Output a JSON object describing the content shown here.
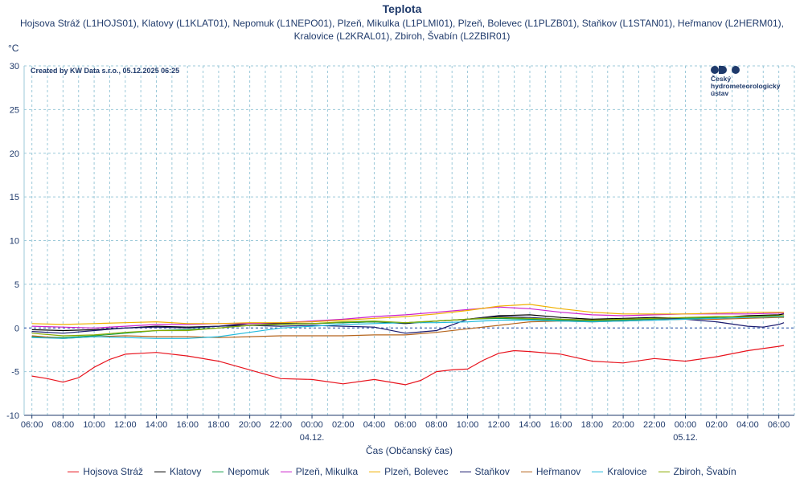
{
  "header": {
    "title": "Teplota",
    "subtitle": "Hojsova Stráž (L1HOJS01), Klatovy (L1KLAT01), Nepomuk (L1NEPO01), Plzeň, Mikulka (L1PLMI01), Plzeň, Bolevec (L1PLZB01), Staňkov (L1STAN01), Heřmanov (L2HERM01), Kralovice (L2KRAL01), Zbiroh, Švabín (L2ZBIR01)",
    "unit": "°C"
  },
  "credit": "Created by KW Data s.r.o., 05.12.2025 06:25",
  "logo": {
    "line1": "Český",
    "line2": "hydrometeorologický",
    "line3": "ústav"
  },
  "chart_data": {
    "type": "line",
    "xlabel": "Čas (Občanský čas)",
    "ylabel": "°C",
    "ylim": [
      -10,
      30
    ],
    "xlim": [
      "2025-12-03 05:30",
      "2025-12-05 07:00"
    ],
    "yticks": [
      30,
      25,
      20,
      15,
      10,
      5,
      0,
      -5,
      -10
    ],
    "xticks": [
      "06:00",
      "08:00",
      "10:00",
      "12:00",
      "14:00",
      "16:00",
      "18:00",
      "20:00",
      "22:00",
      "00:00",
      "02:00",
      "04:00",
      "06:00",
      "08:00",
      "10:00",
      "12:00",
      "14:00",
      "16:00",
      "18:00",
      "20:00",
      "22:00",
      "00:00",
      "02:00",
      "04:00",
      "06:00"
    ],
    "date_labels": [
      {
        "at": "2025-12-04 00:00",
        "text": "04.12."
      },
      {
        "at": "2025-12-05 00:00",
        "text": "05.12."
      }
    ],
    "grid": true,
    "zero_line": true,
    "legend_position": "bottom",
    "series": [
      {
        "name": "Hojsova Stráž",
        "color": "#e8141e",
        "x": [
          "2025-12-03 06:00",
          "2025-12-03 07:00",
          "2025-12-03 08:00",
          "2025-12-03 09:00",
          "2025-12-03 10:00",
          "2025-12-03 11:00",
          "2025-12-03 12:00",
          "2025-12-03 13:00",
          "2025-12-03 14:00",
          "2025-12-03 16:00",
          "2025-12-03 18:00",
          "2025-12-03 20:00",
          "2025-12-03 22:00",
          "2025-12-04 00:00",
          "2025-12-04 02:00",
          "2025-12-04 04:00",
          "2025-12-04 06:00",
          "2025-12-04 07:00",
          "2025-12-04 08:00",
          "2025-12-04 09:00",
          "2025-12-04 10:00",
          "2025-12-04 11:00",
          "2025-12-04 12:00",
          "2025-12-04 13:00",
          "2025-12-04 14:00",
          "2025-12-04 16:00",
          "2025-12-04 18:00",
          "2025-12-04 19:00",
          "2025-12-04 20:00",
          "2025-12-04 22:00",
          "2025-12-05 00:00",
          "2025-12-05 02:00",
          "2025-12-05 04:00",
          "2025-12-05 06:00",
          "2025-12-05 06:20"
        ],
        "y": [
          -5.5,
          -5.8,
          -6.2,
          -5.7,
          -4.5,
          -3.6,
          -3.0,
          -2.9,
          -2.8,
          -3.2,
          -3.8,
          -4.8,
          -5.8,
          -5.9,
          -6.4,
          -5.9,
          -6.5,
          -6.0,
          -5.0,
          -4.8,
          -4.7,
          -3.7,
          -2.9,
          -2.6,
          -2.7,
          -3.0,
          -3.8,
          -3.9,
          -4.0,
          -3.5,
          -3.8,
          -3.3,
          -2.6,
          -2.1,
          -2.0
        ]
      },
      {
        "name": "Klatovy",
        "color": "#000000",
        "x": [
          "2025-12-03 06:00",
          "2025-12-03 08:00",
          "2025-12-03 10:00",
          "2025-12-03 12:00",
          "2025-12-03 14:00",
          "2025-12-03 16:00",
          "2025-12-03 18:00",
          "2025-12-03 20:00",
          "2025-12-03 22:00",
          "2025-12-04 00:00",
          "2025-12-04 02:00",
          "2025-12-04 04:00",
          "2025-12-04 06:00",
          "2025-12-04 08:00",
          "2025-12-04 10:00",
          "2025-12-04 12:00",
          "2025-12-04 14:00",
          "2025-12-04 16:00",
          "2025-12-04 18:00",
          "2025-12-04 20:00",
          "2025-12-04 22:00",
          "2025-12-05 00:00",
          "2025-12-05 02:00",
          "2025-12-05 04:00",
          "2025-12-05 06:00",
          "2025-12-05 06:20"
        ],
        "y": [
          -0.2,
          -0.3,
          -0.2,
          0.0,
          0.2,
          0.1,
          0.2,
          0.5,
          0.5,
          0.5,
          0.6,
          0.7,
          0.5,
          0.8,
          1.0,
          1.4,
          1.5,
          1.2,
          1.0,
          1.1,
          1.2,
          1.1,
          1.2,
          1.4,
          1.5,
          1.6
        ]
      },
      {
        "name": "Nepomuk",
        "color": "#16a04a",
        "x": [
          "2025-12-03 06:00",
          "2025-12-03 08:00",
          "2025-12-03 10:00",
          "2025-12-03 12:00",
          "2025-12-03 14:00",
          "2025-12-03 16:00",
          "2025-12-03 18:00",
          "2025-12-03 20:00",
          "2025-12-03 22:00",
          "2025-12-04 00:00",
          "2025-12-04 02:00",
          "2025-12-04 04:00",
          "2025-12-04 06:00",
          "2025-12-04 08:00",
          "2025-12-04 10:00",
          "2025-12-04 12:00",
          "2025-12-04 14:00",
          "2025-12-04 16:00",
          "2025-12-04 18:00",
          "2025-12-04 20:00",
          "2025-12-04 22:00",
          "2025-12-05 00:00",
          "2025-12-05 02:00",
          "2025-12-05 04:00",
          "2025-12-05 06:00",
          "2025-12-05 06:20"
        ],
        "y": [
          -1.0,
          -1.1,
          -0.9,
          -0.6,
          -0.3,
          -0.2,
          0.0,
          0.3,
          0.4,
          0.5,
          0.6,
          0.7,
          0.6,
          0.8,
          1.0,
          1.1,
          1.0,
          0.9,
          0.8,
          0.9,
          1.0,
          1.1,
          1.2,
          1.3,
          1.4,
          1.3
        ]
      },
      {
        "name": "Plzeň, Mikulka",
        "color": "#cc22cc",
        "x": [
          "2025-12-03 06:00",
          "2025-12-03 08:00",
          "2025-12-03 10:00",
          "2025-12-03 12:00",
          "2025-12-03 14:00",
          "2025-12-03 16:00",
          "2025-12-03 18:00",
          "2025-12-03 20:00",
          "2025-12-03 22:00",
          "2025-12-04 00:00",
          "2025-12-04 02:00",
          "2025-12-04 04:00",
          "2025-12-04 06:00",
          "2025-12-04 08:00",
          "2025-12-04 10:00",
          "2025-12-04 12:00",
          "2025-12-04 14:00",
          "2025-12-04 16:00",
          "2025-12-04 18:00",
          "2025-12-04 20:00",
          "2025-12-04 22:00",
          "2025-12-05 00:00",
          "2025-12-05 02:00",
          "2025-12-05 04:00",
          "2025-12-05 06:00",
          "2025-12-05 06:20"
        ],
        "y": [
          0.2,
          0.1,
          0.0,
          0.2,
          0.4,
          0.4,
          0.5,
          0.5,
          0.6,
          0.8,
          1.0,
          1.3,
          1.5,
          1.8,
          2.1,
          2.4,
          2.2,
          1.8,
          1.5,
          1.4,
          1.5,
          1.6,
          1.6,
          1.6,
          1.7,
          1.7
        ]
      },
      {
        "name": "Plzeň, Bolevec",
        "color": "#f0b000",
        "x": [
          "2025-12-03 06:00",
          "2025-12-03 08:00",
          "2025-12-03 10:00",
          "2025-12-03 12:00",
          "2025-12-03 14:00",
          "2025-12-03 16:00",
          "2025-12-03 18:00",
          "2025-12-03 20:00",
          "2025-12-03 22:00",
          "2025-12-04 00:00",
          "2025-12-04 02:00",
          "2025-12-04 04:00",
          "2025-12-04 06:00",
          "2025-12-04 08:00",
          "2025-12-04 10:00",
          "2025-12-04 12:00",
          "2025-12-04 14:00",
          "2025-12-04 16:00",
          "2025-12-04 18:00",
          "2025-12-04 20:00",
          "2025-12-04 22:00",
          "2025-12-05 00:00",
          "2025-12-05 02:00",
          "2025-12-05 04:00",
          "2025-12-05 06:00",
          "2025-12-05 06:20"
        ],
        "y": [
          0.5,
          0.4,
          0.5,
          0.6,
          0.7,
          0.5,
          0.5,
          0.6,
          0.6,
          0.7,
          0.9,
          1.1,
          1.3,
          1.6,
          2.0,
          2.5,
          2.7,
          2.2,
          1.8,
          1.6,
          1.6,
          1.6,
          1.7,
          1.8,
          1.8,
          1.8
        ]
      },
      {
        "name": "Staňkov",
        "color": "#1a1a6e",
        "x": [
          "2025-12-03 06:00",
          "2025-12-03 08:00",
          "2025-12-03 10:00",
          "2025-12-03 12:00",
          "2025-12-03 14:00",
          "2025-12-03 16:00",
          "2025-12-03 18:00",
          "2025-12-03 20:00",
          "2025-12-03 22:00",
          "2025-12-04 00:00",
          "2025-12-04 02:00",
          "2025-12-04 04:00",
          "2025-12-04 06:00",
          "2025-12-04 08:00",
          "2025-12-04 10:00",
          "2025-12-04 12:00",
          "2025-12-04 14:00",
          "2025-12-04 16:00",
          "2025-12-04 18:00",
          "2025-12-04 20:00",
          "2025-12-04 22:00",
          "2025-12-05 00:00",
          "2025-12-05 02:00",
          "2025-12-05 04:00",
          "2025-12-05 05:00",
          "2025-12-05 06:00",
          "2025-12-05 06:20"
        ],
        "y": [
          -0.4,
          -0.6,
          -0.3,
          0.0,
          0.1,
          0.0,
          0.2,
          0.3,
          0.2,
          0.3,
          0.2,
          0.1,
          -0.6,
          -0.3,
          1.0,
          1.3,
          1.2,
          1.0,
          0.9,
          1.0,
          1.1,
          1.0,
          0.7,
          0.2,
          0.1,
          0.4,
          0.6
        ]
      },
      {
        "name": "Heřmanov",
        "color": "#b5651d",
        "x": [
          "2025-12-03 06:00",
          "2025-12-03 08:00",
          "2025-12-03 10:00",
          "2025-12-03 12:00",
          "2025-12-03 14:00",
          "2025-12-03 16:00",
          "2025-12-03 18:00",
          "2025-12-03 20:00",
          "2025-12-03 22:00",
          "2025-12-04 00:00",
          "2025-12-04 02:00",
          "2025-12-04 04:00",
          "2025-12-04 06:00",
          "2025-12-04 08:00",
          "2025-12-04 10:00",
          "2025-12-04 12:00",
          "2025-12-04 14:00",
          "2025-12-04 16:00",
          "2025-12-04 18:00",
          "2025-12-04 20:00",
          "2025-12-04 22:00",
          "2025-12-05 00:00",
          "2025-12-05 02:00",
          "2025-12-05 04:00",
          "2025-12-05 06:00",
          "2025-12-05 06:20"
        ],
        "y": [
          -0.9,
          -1.2,
          -1.0,
          -0.9,
          -1.0,
          -1.0,
          -1.1,
          -1.0,
          -0.9,
          -0.9,
          -0.9,
          -0.8,
          -0.8,
          -0.5,
          -0.1,
          0.3,
          0.7,
          0.8,
          0.7,
          0.8,
          0.9,
          1.0,
          1.0,
          1.1,
          1.2,
          1.2
        ]
      },
      {
        "name": "Kralovice",
        "color": "#22bbdd",
        "x": [
          "2025-12-03 06:00",
          "2025-12-03 08:00",
          "2025-12-03 10:00",
          "2025-12-03 12:00",
          "2025-12-03 14:00",
          "2025-12-03 16:00",
          "2025-12-03 18:00",
          "2025-12-03 20:00",
          "2025-12-03 22:00",
          "2025-12-04 00:00",
          "2025-12-04 02:00",
          "2025-12-04 04:00",
          "2025-12-04 06:00",
          "2025-12-04 08:00",
          "2025-12-04 10:00",
          "2025-12-04 12:00",
          "2025-12-04 14:00",
          "2025-12-04 16:00",
          "2025-12-04 18:00",
          "2025-12-04 20:00",
          "2025-12-04 22:00",
          "2025-12-05 00:00",
          "2025-12-05 02:00",
          "2025-12-05 04:00",
          "2025-12-05 06:00",
          "2025-12-05 06:20"
        ],
        "y": [
          -1.1,
          -1.2,
          -1.0,
          -1.1,
          -1.2,
          -1.2,
          -1.0,
          -0.5,
          0.0,
          0.2,
          0.4,
          0.5,
          0.6,
          0.6,
          0.7,
          0.9,
          0.9,
          0.8,
          0.7,
          0.8,
          0.9,
          1.0,
          1.1,
          1.2,
          1.3,
          1.3
        ]
      },
      {
        "name": "Zbiroh, Švabín",
        "color": "#88aa00",
        "x": [
          "2025-12-03 06:00",
          "2025-12-03 08:00",
          "2025-12-03 10:00",
          "2025-12-03 12:00",
          "2025-12-03 14:00",
          "2025-12-03 16:00",
          "2025-12-03 18:00",
          "2025-12-03 20:00",
          "2025-12-03 22:00",
          "2025-12-04 00:00",
          "2025-12-04 02:00",
          "2025-12-04 04:00",
          "2025-12-04 06:00",
          "2025-12-04 08:00",
          "2025-12-04 10:00",
          "2025-12-04 12:00",
          "2025-12-04 14:00",
          "2025-12-04 16:00",
          "2025-12-04 18:00",
          "2025-12-04 20:00",
          "2025-12-04 22:00",
          "2025-12-05 00:00",
          "2025-12-05 02:00",
          "2025-12-05 04:00",
          "2025-12-05 06:00",
          "2025-12-05 06:20"
        ],
        "y": [
          -0.6,
          -0.9,
          -0.8,
          -0.5,
          -0.3,
          -0.3,
          0.0,
          0.3,
          0.4,
          0.5,
          0.7,
          0.8,
          0.6,
          0.8,
          1.0,
          1.2,
          1.1,
          1.0,
          0.9,
          1.0,
          1.1,
          1.2,
          1.3,
          1.3,
          1.4,
          1.4
        ]
      }
    ]
  }
}
